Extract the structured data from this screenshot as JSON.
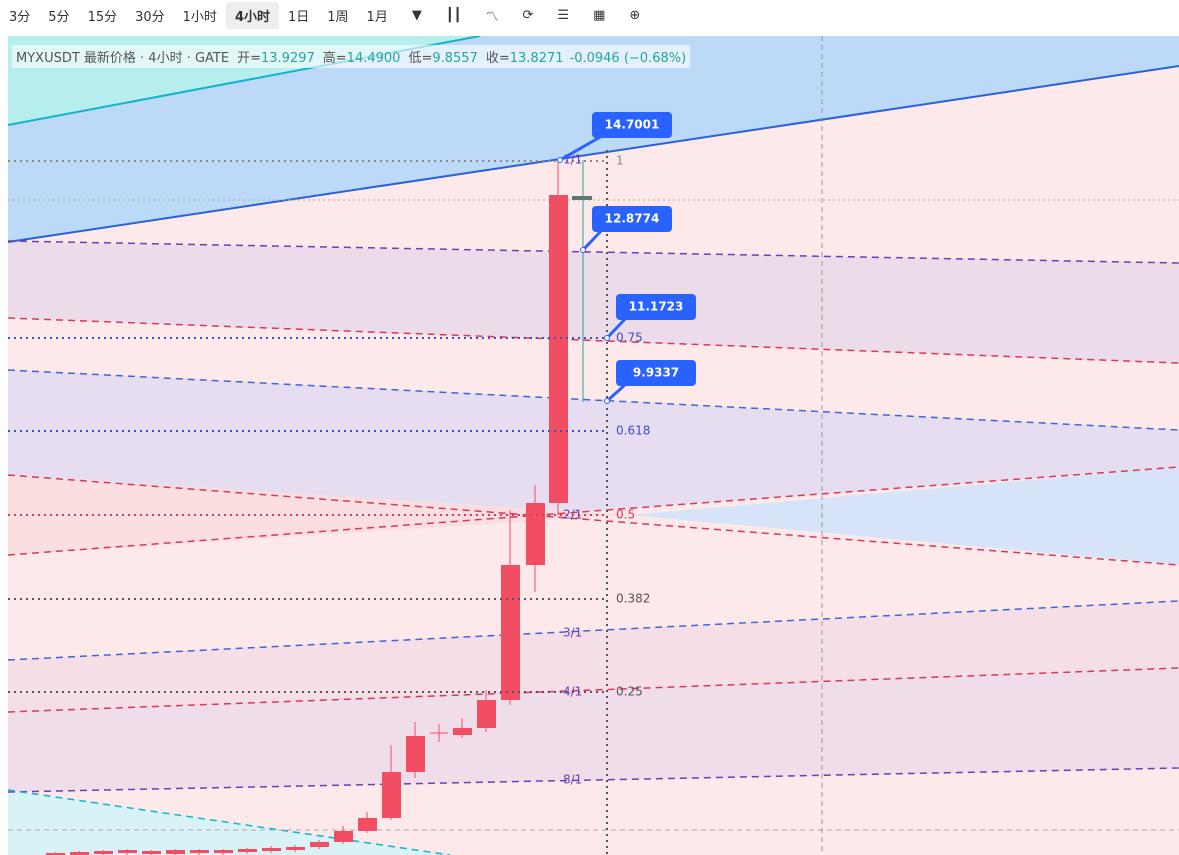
{
  "toolbar": {
    "intervals": [
      "3分",
      "5分",
      "15分",
      "30分",
      "1小时",
      "4小时",
      "1日",
      "1周",
      "1月"
    ],
    "active": 5
  },
  "legend": {
    "symbol": "MYXUSDT 最新价格 · 4小时 · GATE",
    "ohlc": [
      {
        "label": "开=",
        "value": "13.9297"
      },
      {
        "label": "高=",
        "value": "14.4900"
      },
      {
        "label": "低=",
        "value": "9.8557"
      },
      {
        "label": "收=",
        "value": "13.8271"
      }
    ],
    "change": "-0.0946 (−0.68%)"
  },
  "price_labels": [
    "14.7001",
    "12.8774",
    "11.1723",
    "9.9337"
  ],
  "fib_levels": [
    "1",
    "0.75",
    "0.618",
    "0.5",
    "0.382",
    "0.25"
  ],
  "gann_labels": [
    "1/1",
    "2/1",
    "3/1",
    "4/1",
    "8/1"
  ]
}
